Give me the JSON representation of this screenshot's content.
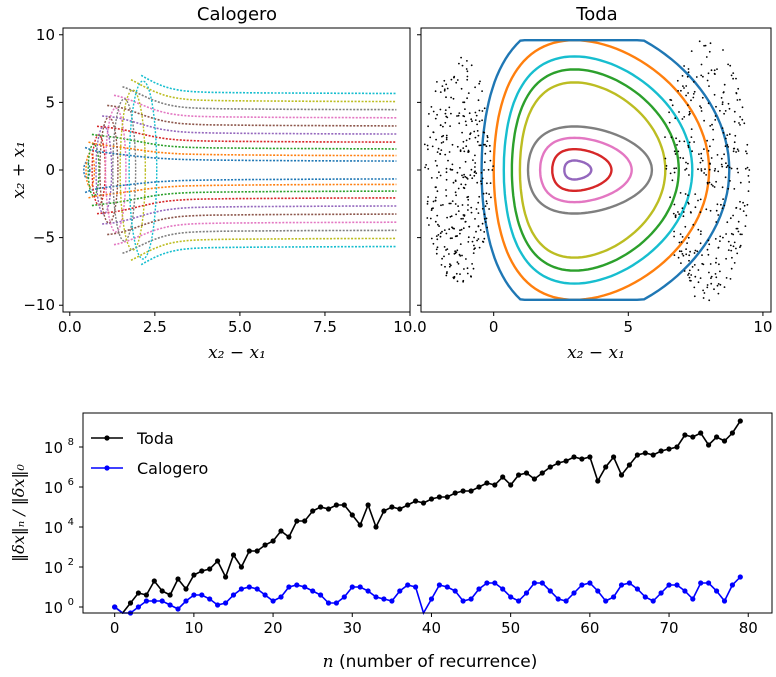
{
  "chart_data": [
    {
      "type": "scatter",
      "title": "Calogero",
      "xlabel": "x₂ − x₁",
      "ylabel": "x₂ + x₁",
      "xlim": [
        -0.2,
        10.0
      ],
      "ylim": [
        -10.5,
        10.5
      ],
      "xticks": [
        0.0,
        2.5,
        5.0,
        7.5,
        10.0
      ],
      "xtick_labels": [
        "0.0",
        "2.5",
        "5.0",
        "7.5",
        "10.0"
      ],
      "yticks": [
        -10,
        -5,
        0,
        5,
        10
      ],
      "ytick_labels": [
        "−10",
        "−5",
        "0",
        "5",
        "10"
      ],
      "grid": false,
      "series": [
        {
          "color": "#1f77b4",
          "orbit_x_min": 0.45,
          "level": 0.6
        },
        {
          "color": "#ff7f0e",
          "orbit_x_min": 0.55,
          "level": 1.0
        },
        {
          "color": "#2ca02c",
          "orbit_x_min": 0.65,
          "level": 1.5
        },
        {
          "color": "#d62728",
          "orbit_x_min": 0.8,
          "level": 2.0
        },
        {
          "color": "#9467bd",
          "orbit_x_min": 0.95,
          "level": 2.6
        },
        {
          "color": "#8c564b",
          "orbit_x_min": 1.1,
          "level": 3.2
        },
        {
          "color": "#e377c2",
          "orbit_x_min": 1.3,
          "level": 3.8
        },
        {
          "color": "#7f7f7f",
          "orbit_x_min": 1.55,
          "level": 4.4
        },
        {
          "color": "#bcbd22",
          "orbit_x_min": 1.8,
          "level": 5.0
        },
        {
          "color": "#17becf",
          "orbit_x_min": 2.1,
          "level": 5.6
        }
      ]
    },
    {
      "type": "scatter",
      "title": "Toda",
      "xlabel": "x₂ − x₁",
      "ylabel": "",
      "xlim": [
        -2.7,
        10.3
      ],
      "ylim": [
        -10.5,
        10.5
      ],
      "xticks": [
        0,
        5,
        10
      ],
      "xtick_labels": [
        "0",
        "5",
        "10"
      ],
      "yticks": [
        -10,
        -5,
        0,
        5,
        10
      ],
      "grid": false,
      "center": [
        3.0,
        0.0
      ],
      "series": [
        {
          "color": "#9467bd",
          "level": 0.25
        },
        {
          "color": "#d62728",
          "level": 0.55
        },
        {
          "color": "#e377c2",
          "level": 0.85
        },
        {
          "color": "#7f7f7f",
          "level": 1.15
        },
        {
          "color": "#bcbd22",
          "level": 1.35
        },
        {
          "color": "#2ca02c",
          "level": 1.55
        },
        {
          "color": "#17becf",
          "level": 1.75
        },
        {
          "color": "#ff7f0e",
          "level": 2.0
        },
        {
          "color": "#1f77b4",
          "level": 2.3
        },
        {
          "color": "#000000",
          "level": "chaotic"
        }
      ]
    },
    {
      "type": "line",
      "xlabel_var": "n",
      "xlabel_text": " (number of recurrence)",
      "ylabel": "‖δx‖ₙ / ‖δx‖₀",
      "xlim": [
        -4,
        83
      ],
      "y_scale": "log",
      "ylim_log10": [
        -0.3,
        9.7
      ],
      "xticks": [
        0,
        10,
        20,
        30,
        40,
        50,
        60,
        70,
        80
      ],
      "ytick_exponents": [
        0,
        2,
        4,
        6,
        8
      ],
      "legend_position": "top-left",
      "series": [
        {
          "name": "Toda",
          "color": "#000000",
          "x": [
            0,
            1,
            2,
            3,
            4,
            5,
            6,
            7,
            8,
            9,
            10,
            11,
            12,
            13,
            14,
            15,
            16,
            17,
            18,
            19,
            20,
            21,
            22,
            23,
            24,
            25,
            26,
            27,
            28,
            29,
            30,
            31,
            32,
            33,
            34,
            35,
            36,
            37,
            38,
            39,
            40,
            41,
            42,
            43,
            44,
            45,
            46,
            47,
            48,
            49,
            50,
            51,
            52,
            53,
            54,
            55,
            56,
            57,
            58,
            59,
            60,
            61,
            62,
            63,
            64,
            65,
            66,
            67,
            68,
            69,
            70,
            71,
            72,
            73,
            74,
            75,
            76,
            77,
            78,
            79
          ],
          "log10_values": [
            0.0,
            -0.4,
            0.2,
            0.7,
            0.6,
            1.3,
            0.8,
            0.6,
            1.4,
            0.9,
            1.6,
            1.8,
            1.9,
            2.3,
            1.5,
            2.6,
            2.0,
            2.8,
            2.8,
            3.1,
            3.3,
            3.8,
            3.5,
            4.3,
            4.3,
            4.8,
            5.0,
            4.9,
            5.1,
            5.1,
            4.6,
            4.1,
            5.1,
            4.0,
            4.8,
            5.0,
            4.9,
            5.1,
            5.3,
            5.2,
            5.4,
            5.5,
            5.5,
            5.7,
            5.8,
            5.8,
            6.0,
            6.2,
            6.1,
            6.5,
            6.1,
            6.6,
            6.7,
            6.4,
            6.7,
            7.0,
            7.2,
            7.3,
            7.5,
            7.4,
            7.5,
            6.3,
            7.0,
            7.5,
            6.6,
            7.1,
            7.6,
            7.7,
            7.6,
            7.8,
            7.9,
            8.0,
            8.6,
            8.5,
            8.7,
            8.1,
            8.5,
            8.3,
            8.7,
            9.3
          ]
        },
        {
          "name": "Calogero",
          "color": "#0000ff",
          "x": [
            0,
            1,
            2,
            3,
            4,
            5,
            6,
            7,
            8,
            9,
            10,
            11,
            12,
            13,
            14,
            15,
            16,
            17,
            18,
            19,
            20,
            21,
            22,
            23,
            24,
            25,
            26,
            27,
            28,
            29,
            30,
            31,
            32,
            33,
            34,
            35,
            36,
            37,
            38,
            39,
            40,
            41,
            42,
            43,
            44,
            45,
            46,
            47,
            48,
            49,
            50,
            51,
            52,
            53,
            54,
            55,
            56,
            57,
            58,
            59,
            60,
            61,
            62,
            63,
            64,
            65,
            66,
            67,
            68,
            69,
            70,
            71,
            72,
            73,
            74,
            75,
            76,
            77,
            78,
            79
          ],
          "log10_values": [
            0.0,
            -0.5,
            -0.3,
            0.0,
            0.3,
            0.3,
            0.3,
            0.1,
            -0.1,
            0.3,
            0.6,
            0.6,
            0.4,
            0.1,
            0.2,
            0.6,
            0.9,
            1.0,
            0.9,
            0.6,
            0.3,
            0.5,
            1.0,
            1.1,
            1.0,
            0.8,
            0.6,
            0.2,
            0.2,
            0.5,
            1.0,
            1.0,
            0.8,
            0.5,
            0.4,
            0.3,
            0.8,
            1.1,
            1.0,
            -1.3,
            0.4,
            1.1,
            1.0,
            0.8,
            0.3,
            0.4,
            0.9,
            1.2,
            1.2,
            0.9,
            0.5,
            0.3,
            0.7,
            1.2,
            1.2,
            0.8,
            0.4,
            0.3,
            0.7,
            1.1,
            1.2,
            0.8,
            0.3,
            0.5,
            1.1,
            1.2,
            0.9,
            0.5,
            0.3,
            0.7,
            1.1,
            1.1,
            0.8,
            0.4,
            1.2,
            1.2,
            0.8,
            0.3,
            1.1,
            1.5
          ]
        }
      ]
    }
  ]
}
